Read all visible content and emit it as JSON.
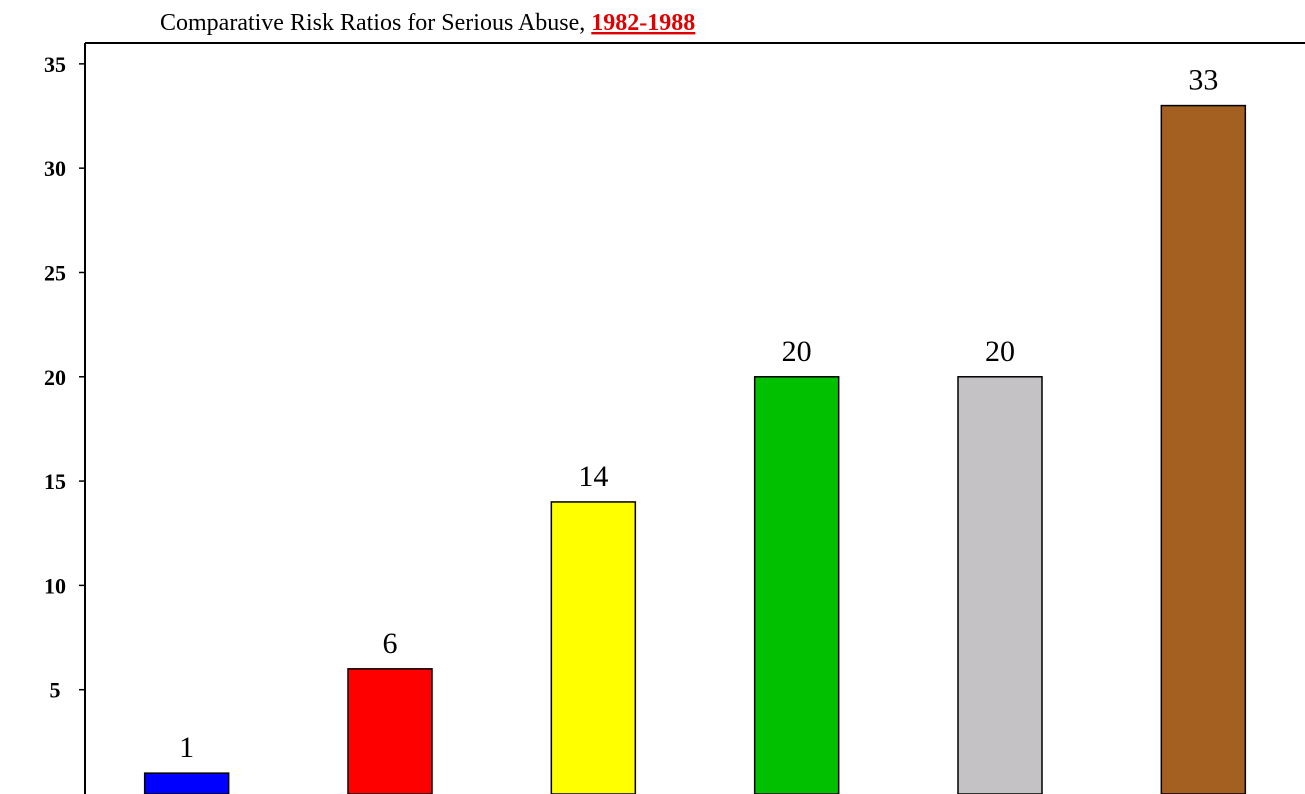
{
  "chart_data": {
    "type": "bar",
    "title": "Comparative Risk Ratios for Serious Abuse,",
    "title_highlight": "1982-1988",
    "categories": [
      null,
      null,
      null,
      null,
      null,
      null
    ],
    "values": [
      1,
      6,
      14,
      20,
      20,
      33
    ],
    "colors": [
      "#0000ff",
      "#ff0000",
      "#ffff00",
      "#00c000",
      "#c4c2c4",
      "#a36020"
    ],
    "ylim": [
      0,
      36
    ],
    "yticks": [
      5,
      10,
      15,
      20,
      25,
      30,
      35
    ],
    "grid": false
  }
}
